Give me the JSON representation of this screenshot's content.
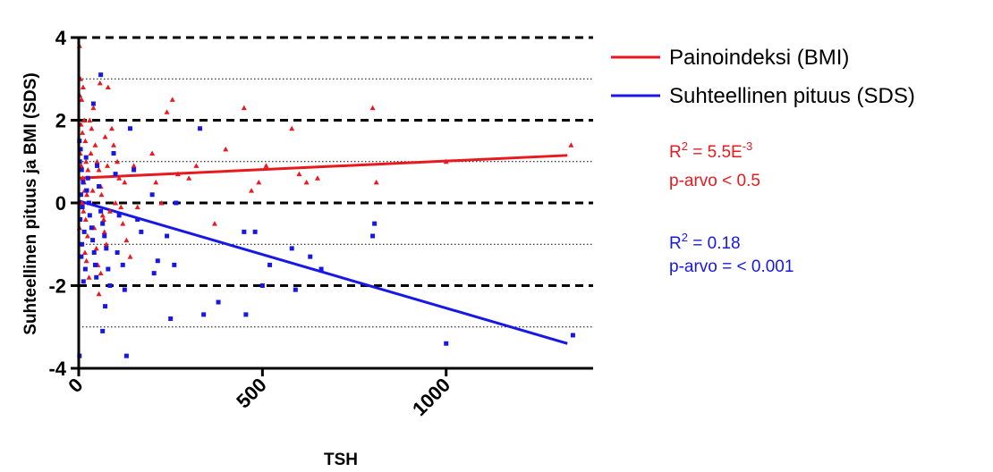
{
  "chart_data": {
    "type": "scatter",
    "xlabel": "TSH",
    "ylabel": "Suhteellinen pituus ja BMI (SDS)",
    "xlim": [
      0,
      1400
    ],
    "ylim": [
      -4,
      4
    ],
    "x_ticks": [
      0,
      500,
      1000
    ],
    "y_ticks": [
      -4,
      -2,
      0,
      2,
      4
    ],
    "x_tick_labels": [
      "0",
      "500",
      "1000"
    ],
    "y_tick_labels": [
      "-4",
      "-2",
      "0",
      "2",
      "4"
    ],
    "grid": {
      "major_dashed_y": [
        -4,
        -2,
        0,
        2,
        4
      ],
      "minor_dotted_y": [
        -3,
        -1,
        1,
        3
      ]
    },
    "legend_position": "right",
    "series": [
      {
        "name": "Painoindeksi (BMI)",
        "color": "#e8191f",
        "marker": "triangle",
        "points": [
          [
            2,
            3.8
          ],
          [
            5,
            3.0
          ],
          [
            3,
            2.6
          ],
          [
            8,
            2.5
          ],
          [
            12,
            2.8
          ],
          [
            15,
            2.0
          ],
          [
            6,
            1.9
          ],
          [
            10,
            1.7
          ],
          [
            18,
            1.5
          ],
          [
            4,
            1.2
          ],
          [
            20,
            1.0
          ],
          [
            7,
            0.9
          ],
          [
            25,
            0.8
          ],
          [
            11,
            0.6
          ],
          [
            14,
            0.5
          ],
          [
            16,
            0.3
          ],
          [
            22,
            0.2
          ],
          [
            9,
            0.0
          ],
          [
            13,
            -0.2
          ],
          [
            19,
            -0.4
          ],
          [
            2,
            -0.6
          ],
          [
            24,
            -0.8
          ],
          [
            5,
            -1.0
          ],
          [
            17,
            -1.2
          ],
          [
            21,
            -1.4
          ],
          [
            28,
            -1.8
          ],
          [
            35,
            1.8
          ],
          [
            40,
            2.3
          ],
          [
            45,
            1.4
          ],
          [
            50,
            1.0
          ],
          [
            55,
            0.8
          ],
          [
            60,
            0.4
          ],
          [
            65,
            -0.3
          ],
          [
            70,
            -0.7
          ],
          [
            75,
            -1.0
          ],
          [
            80,
            2.8
          ],
          [
            90,
            1.8
          ],
          [
            95,
            1.4
          ],
          [
            105,
            1.0
          ],
          [
            110,
            0.6
          ],
          [
            115,
            -0.1
          ],
          [
            120,
            -0.5
          ],
          [
            130,
            -0.9
          ],
          [
            140,
            -1.3
          ],
          [
            55,
            -2.2
          ],
          [
            60,
            -1.7
          ],
          [
            30,
            2.0
          ],
          [
            33,
            1.2
          ],
          [
            38,
            0.3
          ],
          [
            42,
            -0.6
          ],
          [
            48,
            -1.1
          ],
          [
            52,
            -1.5
          ],
          [
            58,
            2.9
          ],
          [
            62,
            0.2
          ],
          [
            68,
            -0.4
          ],
          [
            72,
            1.6
          ],
          [
            78,
            0.9
          ],
          [
            85,
            -0.2
          ],
          [
            100,
            0.0
          ],
          [
            125,
            0.5
          ],
          [
            150,
            0.9
          ],
          [
            160,
            -0.1
          ],
          [
            200,
            1.2
          ],
          [
            210,
            0.5
          ],
          [
            225,
            0.0
          ],
          [
            240,
            2.2
          ],
          [
            255,
            2.5
          ],
          [
            270,
            0.7
          ],
          [
            300,
            0.6
          ],
          [
            320,
            0.9
          ],
          [
            370,
            -0.5
          ],
          [
            400,
            1.3
          ],
          [
            450,
            2.3
          ],
          [
            470,
            0.3
          ],
          [
            490,
            0.5
          ],
          [
            510,
            0.9
          ],
          [
            580,
            1.8
          ],
          [
            600,
            0.7
          ],
          [
            620,
            0.5
          ],
          [
            650,
            0.6
          ],
          [
            800,
            2.3
          ],
          [
            810,
            0.5
          ],
          [
            1000,
            1.0
          ],
          [
            1340,
            1.4
          ]
        ]
      },
      {
        "name": "Suhteellinen pituus (SDS)",
        "color": "#1818e6",
        "marker": "square",
        "points": [
          [
            2,
            1.5
          ],
          [
            5,
            1.3
          ],
          [
            3,
            1.0
          ],
          [
            8,
            0.8
          ],
          [
            12,
            0.5
          ],
          [
            6,
            0.2
          ],
          [
            10,
            -0.1
          ],
          [
            4,
            -0.4
          ],
          [
            15,
            -0.7
          ],
          [
            9,
            -1.0
          ],
          [
            7,
            -1.3
          ],
          [
            18,
            -1.6
          ],
          [
            13,
            -1.9
          ],
          [
            2,
            -3.7
          ],
          [
            20,
            1.1
          ],
          [
            25,
            0.6
          ],
          [
            22,
            0.3
          ],
          [
            28,
            0.0
          ],
          [
            30,
            -0.3
          ],
          [
            35,
            -0.6
          ],
          [
            38,
            -0.9
          ],
          [
            42,
            -1.2
          ],
          [
            45,
            -1.5
          ],
          [
            48,
            -1.8
          ],
          [
            40,
            2.4
          ],
          [
            50,
            0.9
          ],
          [
            55,
            0.4
          ],
          [
            60,
            -0.2
          ],
          [
            65,
            -0.5
          ],
          [
            70,
            -0.8
          ],
          [
            75,
            -1.1
          ],
          [
            80,
            -1.6
          ],
          [
            85,
            -2.0
          ],
          [
            60,
            3.1
          ],
          [
            65,
            -3.1
          ],
          [
            72,
            -2.5
          ],
          [
            95,
            1.2
          ],
          [
            100,
            0.7
          ],
          [
            110,
            -0.3
          ],
          [
            105,
            -1.2
          ],
          [
            120,
            -1.5
          ],
          [
            125,
            -2.1
          ],
          [
            130,
            -3.7
          ],
          [
            140,
            1.8
          ],
          [
            150,
            0.8
          ],
          [
            160,
            -0.4
          ],
          [
            170,
            -0.7
          ],
          [
            200,
            0.2
          ],
          [
            205,
            -1.7
          ],
          [
            215,
            -1.4
          ],
          [
            240,
            -0.8
          ],
          [
            250,
            -2.8
          ],
          [
            260,
            -1.5
          ],
          [
            265,
            0.0
          ],
          [
            330,
            1.8
          ],
          [
            340,
            -2.7
          ],
          [
            380,
            -2.4
          ],
          [
            450,
            -0.7
          ],
          [
            455,
            -2.7
          ],
          [
            480,
            -0.7
          ],
          [
            500,
            -2.0
          ],
          [
            520,
            -1.5
          ],
          [
            580,
            -1.1
          ],
          [
            590,
            -2.1
          ],
          [
            630,
            -1.3
          ],
          [
            660,
            -1.6
          ],
          [
            800,
            -0.8
          ],
          [
            805,
            -0.5
          ],
          [
            1000,
            -3.4
          ],
          [
            1345,
            -3.2
          ]
        ]
      }
    ],
    "regression_lines": [
      {
        "series": "Painoindeksi (BMI)",
        "x": [
          0,
          1330
        ],
        "y": [
          0.6,
          1.15
        ]
      },
      {
        "series": "Suhteellinen pituus (SDS)",
        "x": [
          0,
          1330
        ],
        "y": [
          0.05,
          -3.4
        ]
      }
    ],
    "annotations": [
      {
        "series": "Painoindeksi (BMI)",
        "r2_base": "R",
        "r2_exp": "2",
        "r2_value": " = 5.5E",
        "r2_value_exp": "-3",
        "p_text": "p-arvo < 0.5"
      },
      {
        "series": "Suhteellinen pituus (SDS)",
        "r2_base": "R",
        "r2_exp": "2",
        "r2_value": " = 0.18",
        "r2_value_exp": "",
        "p_text": "p-arvo = < 0.001"
      }
    ]
  }
}
